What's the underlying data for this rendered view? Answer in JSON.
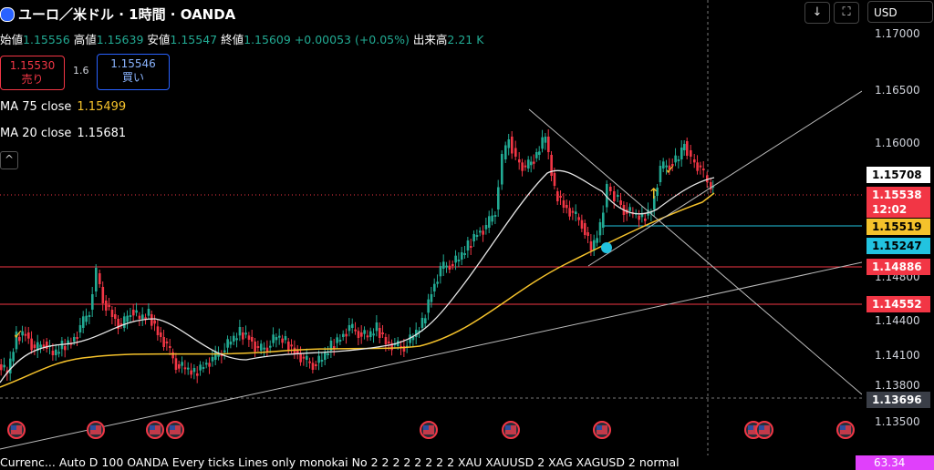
{
  "header": {
    "title": "ユーロ／米ドル · 1時間 · OANDA"
  },
  "ohlc": {
    "open_label": "始値",
    "open": "1.15556",
    "high_label": "高値",
    "high": "1.15639",
    "low_label": "安値",
    "low": "1.15547",
    "close_label": "終値",
    "close": "1.15609",
    "change": "+0.00053 (+0.05%)",
    "volume_label": "出来高",
    "volume": "2.21 K"
  },
  "trade": {
    "sell_price": "1.15530",
    "sell_label": "売り",
    "spread": "1.6",
    "buy_price": "1.15546",
    "buy_label": "買い"
  },
  "indicators": [
    {
      "label": "MA 75 close",
      "value": "1.15499"
    },
    {
      "label": "MA 20 close",
      "value": "1.15681"
    }
  ],
  "toolbar": {
    "download_icon": "download-icon",
    "fullscreen_icon": "fullscreen-icon",
    "currency": "USD"
  },
  "price_axis": {
    "ticks": [
      "1.17000",
      "1.16500",
      "1.16000",
      "1.14800",
      "1.14400",
      "1.14100",
      "1.13800",
      "1.13500"
    ],
    "labels": [
      {
        "text": "1.15708",
        "bg": "#ffffff",
        "fg": "#000000"
      },
      {
        "text": "1.15538",
        "bg": "#f23645",
        "fg": "#ffffff"
      },
      {
        "text": "12:02",
        "bg": "#f23645",
        "fg": "#ffffff"
      },
      {
        "text": "1.15519",
        "bg": "#f5c22b",
        "fg": "#000000"
      },
      {
        "text": "1.15247",
        "bg": "#22c3e0",
        "fg": "#000000"
      },
      {
        "text": "1.14886",
        "bg": "#f23645",
        "fg": "#ffffff"
      },
      {
        "text": "1.14552",
        "bg": "#f23645",
        "fg": "#ffffff"
      },
      {
        "text": "1.13696",
        "bg": "#3a3e47",
        "fg": "#ffffff"
      }
    ]
  },
  "bottom_bar": {
    "text": "Currenc...   Auto D 100 OANDA Every ticks Lines only monokai No 2 2 2 2 2 2 2 2 XAU XAUUSD 2 XAG XAGUSD 2 normal",
    "value": "63.34"
  }
}
